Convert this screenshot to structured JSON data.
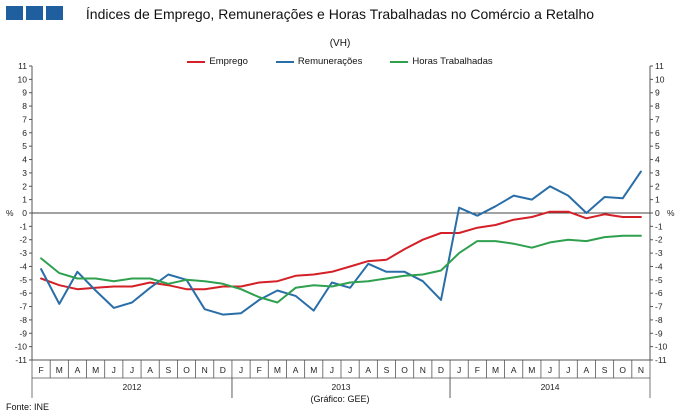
{
  "logo": {
    "color": "#1f5fa0"
  },
  "source": "Fonte: INE",
  "chart_data": {
    "type": "line",
    "title": "Índices de Emprego, Remunerações e Horas Trabalhadas no Comércio a Retalho",
    "subtitle": "(VH)",
    "credit": "(Gráfico: GEE)",
    "ylabel_left": "%",
    "ylabel_right": "%",
    "ylim": [
      -11,
      11
    ],
    "yticks": [
      11,
      10,
      9,
      8,
      7,
      6,
      5,
      4,
      3,
      2,
      1,
      0,
      -1,
      -2,
      -3,
      -4,
      -5,
      -6,
      -7,
      -8,
      -9,
      -10,
      -11
    ],
    "categories": [
      "F",
      "M",
      "A",
      "M",
      "J",
      "J",
      "A",
      "S",
      "O",
      "N",
      "D",
      "J",
      "F",
      "M",
      "A",
      "M",
      "J",
      "J",
      "A",
      "S",
      "O",
      "N",
      "D",
      "J",
      "F",
      "M",
      "A",
      "M",
      "J",
      "J",
      "A",
      "S",
      "O",
      "N"
    ],
    "years": [
      {
        "label": "2012",
        "start": 0,
        "end": 10
      },
      {
        "label": "2013",
        "start": 11,
        "end": 22
      },
      {
        "label": "2014",
        "start": 23,
        "end": 33
      }
    ],
    "series": [
      {
        "name": "Emprego",
        "color": "#d42027",
        "values": [
          -4.9,
          -5.4,
          -5.7,
          -5.6,
          -5.5,
          -5.5,
          -5.2,
          -5.4,
          -5.7,
          -5.7,
          -5.5,
          -5.5,
          -5.2,
          -5.1,
          -4.7,
          -4.6,
          -4.4,
          -4.0,
          -3.6,
          -3.5,
          -2.7,
          -2.0,
          -1.5,
          -1.5,
          -1.1,
          -0.9,
          -0.5,
          -0.3,
          0.1,
          0.1,
          -0.4,
          -0.1,
          -0.3,
          -0.3
        ]
      },
      {
        "name": "Remunerações",
        "color": "#2a6ea8",
        "values": [
          -4.2,
          -6.8,
          -4.4,
          -5.8,
          -7.1,
          -6.7,
          -5.6,
          -4.6,
          -5.0,
          -7.2,
          -7.6,
          -7.5,
          -6.5,
          -5.8,
          -6.2,
          -7.3,
          -5.2,
          -5.6,
          -3.8,
          -4.4,
          -4.4,
          -5.1,
          -6.5,
          0.4,
          -0.2,
          0.5,
          1.3,
          1.0,
          2.0,
          1.3,
          0.0,
          1.2,
          1.1,
          3.1
        ]
      },
      {
        "name": "Horas Trabalhadas",
        "color": "#2ea04e",
        "values": [
          -3.4,
          -4.5,
          -4.9,
          -4.9,
          -5.1,
          -4.9,
          -4.9,
          -5.3,
          -5.0,
          -5.1,
          -5.3,
          -5.7,
          -6.3,
          -6.7,
          -5.6,
          -5.4,
          -5.5,
          -5.2,
          -5.1,
          -4.9,
          -4.7,
          -4.6,
          -4.3,
          -3.0,
          -2.1,
          -2.1,
          -2.3,
          -2.6,
          -2.2,
          -2.0,
          -2.1,
          -1.8,
          -1.7,
          -1.7
        ]
      }
    ]
  }
}
